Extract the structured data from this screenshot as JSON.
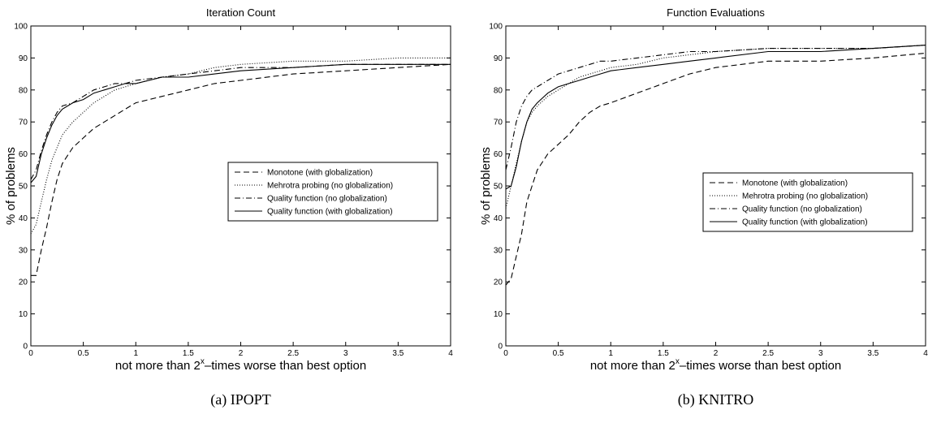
{
  "chart_data": [
    {
      "type": "line",
      "title": "Iteration Count",
      "caption": "(a) IPOPT",
      "xlabel": [
        "not more than 2",
        "x",
        "–times worse than best option"
      ],
      "ylabel": "% of problems",
      "x": [
        0,
        0.05,
        0.1,
        0.15,
        0.2,
        0.25,
        0.3,
        0.4,
        0.5,
        0.6,
        0.7,
        0.8,
        0.9,
        1,
        1.25,
        1.5,
        1.75,
        2,
        2.5,
        3,
        3.5,
        4
      ],
      "series": [
        {
          "name": "Monotone (with globalization)",
          "color": "#000",
          "dash": "dashed",
          "values": [
            22,
            22,
            30,
            37,
            45,
            52,
            57,
            62,
            65,
            68,
            70,
            72,
            74,
            76,
            78,
            80,
            82,
            83,
            85,
            86,
            87,
            88
          ]
        },
        {
          "name": "Mehrotra probing (no globalization)",
          "color": "#000",
          "dash": "dotted",
          "values": [
            35,
            38,
            45,
            52,
            58,
            62,
            66,
            70,
            73,
            76,
            78,
            80,
            81,
            82,
            84,
            85,
            87,
            88,
            89,
            89,
            90,
            90
          ]
        },
        {
          "name": "Quality function (no globalization)",
          "color": "#000",
          "dash": "dashdot",
          "values": [
            52,
            55,
            61,
            66,
            70,
            73,
            75,
            76,
            78,
            80,
            81,
            82,
            82,
            83,
            84,
            85,
            86,
            87,
            87,
            88,
            88,
            88
          ]
        },
        {
          "name": "Quality function (with globalization)",
          "color": "#000",
          "dash": "solid",
          "values": [
            51,
            53,
            60,
            65,
            69,
            72,
            74,
            76,
            77,
            79,
            80,
            81,
            82,
            82,
            84,
            84,
            85,
            86,
            87,
            88,
            88,
            88
          ]
        }
      ],
      "xlim": [
        0,
        4
      ],
      "xticks": [
        0,
        0.5,
        1,
        1.5,
        2,
        2.5,
        3,
        3.5,
        4
      ],
      "ylim": [
        0,
        100
      ],
      "yticks": [
        0,
        10,
        20,
        30,
        40,
        50,
        60,
        70,
        80,
        90,
        100
      ],
      "legend": "right"
    },
    {
      "type": "line",
      "title": "Function Evaluations",
      "caption": "(b) KNITRO",
      "xlabel": [
        "not more than 2",
        "x",
        "–times worse than best option"
      ],
      "ylabel": "% of problems",
      "x": [
        0,
        0.05,
        0.1,
        0.15,
        0.2,
        0.25,
        0.3,
        0.4,
        0.5,
        0.6,
        0.7,
        0.8,
        0.9,
        1,
        1.25,
        1.5,
        1.75,
        2,
        2.5,
        3,
        3.5,
        4
      ],
      "series": [
        {
          "name": "Monotone (with globalization)",
          "color": "#000",
          "dash": "dashed",
          "values": [
            19,
            21,
            28,
            35,
            45,
            50,
            55,
            60,
            63,
            66,
            70,
            73,
            75,
            76,
            79,
            82,
            85,
            87,
            89,
            89,
            90,
            91.5
          ]
        },
        {
          "name": "Mehrotra probing (no globalization)",
          "color": "#000",
          "dash": "dotted",
          "values": [
            43,
            50,
            57,
            64,
            70,
            73,
            75,
            78,
            80,
            82,
            84,
            85,
            86,
            87,
            88,
            90,
            91,
            92,
            93,
            93,
            93,
            94
          ]
        },
        {
          "name": "Quality function (no globalization)",
          "color": "#000",
          "dash": "dashdot",
          "values": [
            55,
            62,
            70,
            75,
            78,
            80,
            81,
            83,
            85,
            86,
            87,
            88,
            89,
            89,
            90,
            91,
            92,
            92,
            93,
            93,
            93,
            94
          ]
        },
        {
          "name": "Quality function (with globalization)",
          "color": "#000",
          "dash": "solid",
          "values": [
            49,
            50,
            56,
            64,
            70,
            74,
            76,
            79,
            81,
            82,
            83,
            84,
            85,
            86,
            87,
            88,
            89,
            90,
            92,
            92,
            93,
            94
          ]
        }
      ],
      "xlim": [
        0,
        4
      ],
      "xticks": [
        0,
        0.5,
        1,
        1.5,
        2,
        2.5,
        3,
        3.5,
        4
      ],
      "ylim": [
        0,
        100
      ],
      "yticks": [
        0,
        10,
        20,
        30,
        40,
        50,
        60,
        70,
        80,
        90,
        100
      ],
      "legend": "right"
    }
  ]
}
